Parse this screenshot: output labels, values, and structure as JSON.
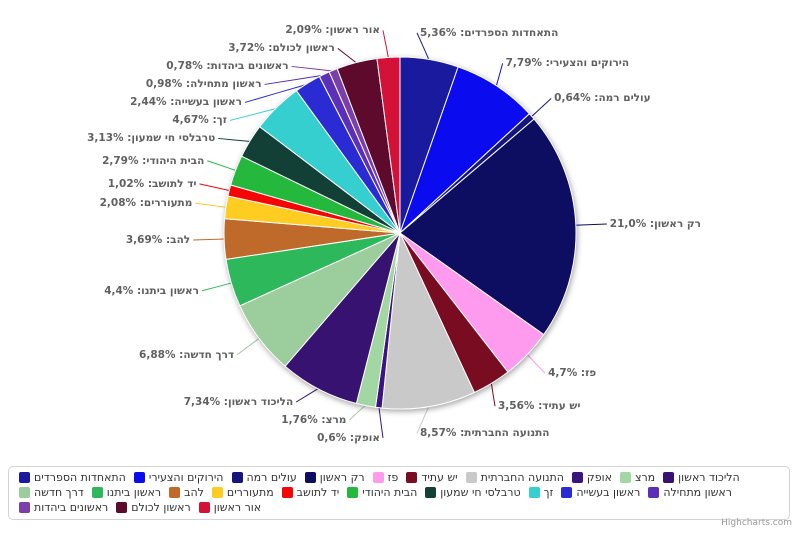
{
  "chart_data": {
    "type": "pie",
    "title": "",
    "legend_position": "bottom",
    "label_format": "{name}: {percent}",
    "credit": "Highcharts.com",
    "slices": [
      {
        "name": "התאחדות הספרדים",
        "value": 5.36,
        "display": "5,36%",
        "color": "#1a1a9e"
      },
      {
        "name": "הירוקים והצעירי",
        "value": 7.79,
        "display": "7,79%",
        "color": "#0b0bf0"
      },
      {
        "name": "עולים רמה",
        "value": 0.64,
        "display": "0,64%",
        "color": "#15157d"
      },
      {
        "name": "רק ראשון",
        "value": 21.0,
        "display": "21,0%",
        "color": "#0d0d62"
      },
      {
        "name": "פז",
        "value": 4.7,
        "display": "4,7%",
        "color": "#ff9bee"
      },
      {
        "name": "יש עתיד",
        "value": 3.56,
        "display": "3,56%",
        "color": "#7a0c22"
      },
      {
        "name": "התנועה החברתית",
        "value": 8.57,
        "display": "8,57%",
        "color": "#c9c9c9"
      },
      {
        "name": "אופק",
        "value": 0.6,
        "display": "0,6%",
        "color": "#3c1480"
      },
      {
        "name": "מרצ",
        "value": 1.76,
        "display": "1,76%",
        "color": "#a2d6a2"
      },
      {
        "name": "הליכוד ראשון",
        "value": 7.34,
        "display": "7,34%",
        "color": "#371270"
      },
      {
        "name": "דרך חדשה",
        "value": 6.88,
        "display": "6,88%",
        "color": "#9ccd9c"
      },
      {
        "name": "ראשון ביתנו",
        "value": 4.4,
        "display": "4,4%",
        "color": "#2eb85c"
      },
      {
        "name": "להב",
        "value": 3.69,
        "display": "3,69%",
        "color": "#bf6a2a"
      },
      {
        "name": "מתעוררים",
        "value": 2.08,
        "display": "2,08%",
        "color": "#ffcc22"
      },
      {
        "name": "יד לתושב",
        "value": 1.02,
        "display": "1,02%",
        "color": "#f50505"
      },
      {
        "name": "הבית היהודי",
        "value": 2.79,
        "display": "2,79%",
        "color": "#24b93c"
      },
      {
        "name": "טרבלסי חי שמעון",
        "value": 3.13,
        "display": "3,13%",
        "color": "#123f36"
      },
      {
        "name": "זך",
        "value": 4.67,
        "display": "4,67%",
        "color": "#35cfcf"
      },
      {
        "name": "ראשון בעשייה",
        "value": 2.44,
        "display": "2,44%",
        "color": "#2b2bd4"
      },
      {
        "name": "ראשון מתחילה",
        "value": 0.98,
        "display": "0,98%",
        "color": "#5c2fb8"
      },
      {
        "name": "ראשונים ביהדות",
        "value": 0.78,
        "display": "0,78%",
        "color": "#7a3fa8"
      },
      {
        "name": "ראשון לכולם",
        "value": 3.72,
        "display": "3,72%",
        "color": "#5e0a2c"
      },
      {
        "name": "אור ראשון",
        "value": 2.09,
        "display": "2,09%",
        "color": "#d41238"
      }
    ]
  }
}
